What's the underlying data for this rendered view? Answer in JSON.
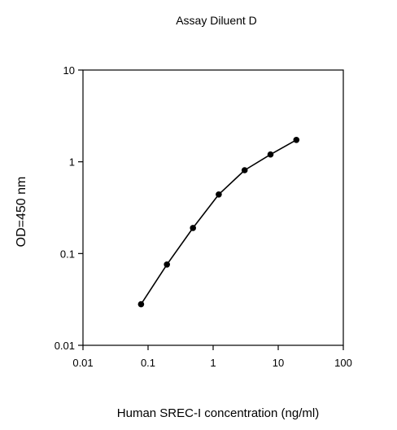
{
  "chart_data": {
    "type": "line",
    "title": "Assay Diluent D",
    "xlabel": "Human SREC-I concentration (ng/ml)",
    "ylabel": "OD=450 nm",
    "x_scale": "log",
    "y_scale": "log",
    "xlim": [
      0.01,
      100
    ],
    "ylim": [
      0.01,
      10
    ],
    "x_ticks": [
      "0.01",
      "0.1",
      "1",
      "10",
      "100"
    ],
    "y_ticks": [
      "0.01",
      "0.1",
      "1",
      "10"
    ],
    "grid": false,
    "legend": "none",
    "series": [
      {
        "x": [
          0.078,
          0.195,
          0.49,
          1.22,
          3.05,
          7.6,
          19
        ],
        "y": [
          0.028,
          0.076,
          0.19,
          0.44,
          0.81,
          1.2,
          1.73
        ],
        "markers": "filled-circle",
        "color": "#000000"
      }
    ]
  }
}
